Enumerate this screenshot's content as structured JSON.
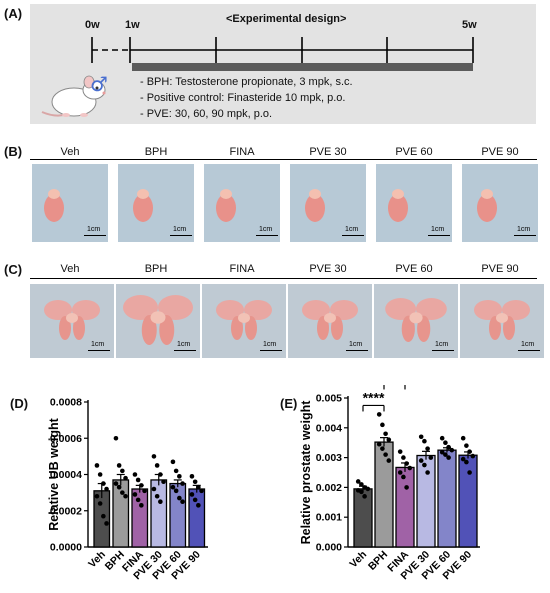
{
  "panels": {
    "A": "(A)",
    "B": "(B)",
    "C": "(C)",
    "D": "(D)",
    "E": "(E)"
  },
  "design": {
    "title": "<Experimental design>",
    "weeks": [
      "0w",
      "1w",
      "5w"
    ],
    "items": [
      "- BPH: Testosterone propionate, 3  mpk, s.c.",
      "- Positive control: Finasteride 10  mpk, p.o.",
      "- PVE: 30, 60, 90 mpk, p.o."
    ],
    "male_symbol": "♂"
  },
  "groups": [
    "Veh",
    "BPH",
    "FINA",
    "PVE 30",
    "PVE 60",
    "PVE 90"
  ],
  "scale_label": "1cm",
  "chart_data": [
    {
      "type": "bar",
      "title": "",
      "ylabel": "Relative UB weight",
      "categories": [
        "Veh",
        "BPH",
        "FINA",
        "PVE 30",
        "PVE 60",
        "PVE 90"
      ],
      "values": [
        0.00031,
        0.00037,
        0.00032,
        0.00037,
        0.00035,
        0.00032
      ],
      "errors": [
        4e-05,
        3e-05,
        2e-05,
        3e-05,
        2e-05,
        2e-05
      ],
      "points": [
        [
          0.00045,
          0.0004,
          0.00035,
          0.00032,
          0.00028,
          0.00024,
          0.00017,
          0.00013
        ],
        [
          0.0006,
          0.00045,
          0.00042,
          0.00038,
          0.00035,
          0.00033,
          0.0003,
          0.00028
        ],
        [
          0.0004,
          0.00037,
          0.00034,
          0.00031,
          0.00029,
          0.00026,
          0.00023
        ],
        [
          0.0005,
          0.00045,
          0.0004,
          0.00036,
          0.00032,
          0.00028,
          0.00025
        ],
        [
          0.00047,
          0.00042,
          0.00039,
          0.00035,
          0.00033,
          0.00031,
          0.00027,
          0.00025
        ],
        [
          0.00039,
          0.00036,
          0.00033,
          0.00031,
          0.00029,
          0.00026,
          0.00023
        ]
      ],
      "colors": [
        "#4d4d4d",
        "#9b9b9b",
        "#a062a6",
        "#b8b9e3",
        "#8385c9",
        "#5152b7"
      ],
      "ylim": [
        0,
        0.0008
      ],
      "yticks": [
        "0.0000",
        "0.0002",
        "0.0004",
        "0.0006",
        "0.0008"
      ],
      "ytick_values": [
        0,
        0.0002,
        0.0004,
        0.0006,
        0.0008
      ]
    },
    {
      "type": "bar",
      "title": "",
      "ylabel": "Relative prostate weight",
      "categories": [
        "Veh",
        "BPH",
        "FINA",
        "PVE 30",
        "PVE 60",
        "PVE 90"
      ],
      "values": [
        0.00195,
        0.00352,
        0.00267,
        0.00307,
        0.00325,
        0.00308
      ],
      "errors": [
        9e-05,
        0.00015,
        0.00015,
        0.00014,
        8e-05,
        0.00011
      ],
      "points": [
        [
          0.0022,
          0.0021,
          0.002,
          0.00195,
          0.0019,
          0.00185,
          0.0017
        ],
        [
          0.00445,
          0.0041,
          0.0038,
          0.0036,
          0.00345,
          0.0033,
          0.0031,
          0.0029
        ],
        [
          0.0032,
          0.003,
          0.0028,
          0.00265,
          0.0025,
          0.00235,
          0.002
        ],
        [
          0.0037,
          0.00355,
          0.0033,
          0.003,
          0.0029,
          0.00275,
          0.0025
        ],
        [
          0.00365,
          0.0035,
          0.00335,
          0.00325,
          0.00318,
          0.0031,
          0.003
        ],
        [
          0.00365,
          0.0034,
          0.0032,
          0.00305,
          0.00295,
          0.00285,
          0.0025
        ]
      ],
      "colors": [
        "#4d4d4d",
        "#9b9b9b",
        "#a062a6",
        "#b8b9e3",
        "#8385c9",
        "#5152b7"
      ],
      "ylim": [
        0,
        0.005
      ],
      "yticks": [
        "0.000",
        "0.001",
        "0.002",
        "0.003",
        "0.004",
        "0.005"
      ],
      "ytick_values": [
        0,
        0.001,
        0.002,
        0.003,
        0.004,
        0.005
      ],
      "annotations": [
        {
          "from": "Veh",
          "to": "BPH",
          "label": "****"
        },
        {
          "from": "BPH",
          "to": "FINA",
          "label": "**"
        }
      ]
    }
  ]
}
